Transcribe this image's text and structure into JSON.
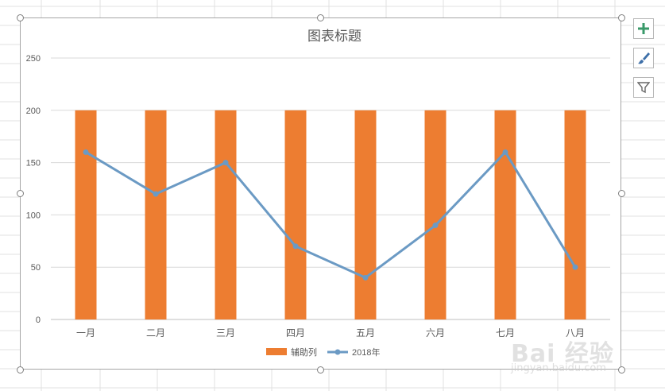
{
  "chart_data": {
    "type": "bar",
    "title": "图表标题",
    "xlabel": "",
    "ylabel": "",
    "categories": [
      "一月",
      "二月",
      "三月",
      "四月",
      "五月",
      "六月",
      "七月",
      "八月"
    ],
    "ylim": [
      0,
      250
    ],
    "yticks": [
      0,
      50,
      100,
      150,
      200,
      250
    ],
    "grid": true,
    "legend_position": "bottom",
    "series": [
      {
        "name": "辅助列",
        "type": "bar",
        "color": "#ED7D31",
        "values": [
          200,
          200,
          200,
          200,
          200,
          200,
          200,
          200
        ]
      },
      {
        "name": "2018年",
        "type": "line",
        "color": "#6B9AC4",
        "values": [
          160,
          120,
          150,
          70,
          40,
          90,
          160,
          50
        ]
      }
    ]
  },
  "toolbar": {
    "icons": [
      "plus-icon",
      "brush-icon",
      "filter-icon"
    ]
  },
  "watermark": {
    "logo_text": "Bai 经验",
    "url_text": "jingyan.baidu.com"
  }
}
